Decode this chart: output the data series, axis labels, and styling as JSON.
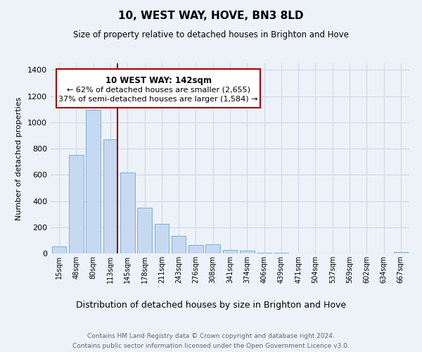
{
  "title": "10, WEST WAY, HOVE, BN3 8LD",
  "subtitle": "Size of property relative to detached houses in Brighton and Hove",
  "xlabel": "Distribution of detached houses by size in Brighton and Hove",
  "ylabel": "Number of detached properties",
  "bar_labels": [
    "15sqm",
    "48sqm",
    "80sqm",
    "113sqm",
    "145sqm",
    "178sqm",
    "211sqm",
    "243sqm",
    "276sqm",
    "308sqm",
    "341sqm",
    "374sqm",
    "406sqm",
    "439sqm",
    "471sqm",
    "504sqm",
    "537sqm",
    "569sqm",
    "602sqm",
    "634sqm",
    "667sqm"
  ],
  "bar_values": [
    55,
    750,
    1095,
    870,
    615,
    350,
    228,
    132,
    65,
    70,
    25,
    20,
    8,
    5,
    2,
    1,
    0,
    0,
    0,
    0,
    10
  ],
  "bar_color": "#c6d9f0",
  "bar_edgecolor": "#7bafd4",
  "vline_color": "#8b0000",
  "ylim": [
    0,
    1450
  ],
  "yticks": [
    0,
    200,
    400,
    600,
    800,
    1000,
    1200,
    1400
  ],
  "annotation_title": "10 WEST WAY: 142sqm",
  "annotation_line1": "← 62% of detached houses are smaller (2,655)",
  "annotation_line2": "37% of semi-detached houses are larger (1,584) →",
  "annotation_box_color": "#aa0000",
  "footer_line1": "Contains HM Land Registry data © Crown copyright and database right 2024.",
  "footer_line2": "Contains public sector information licensed under the Open Government Licence v3.0.",
  "bg_color": "#edf2f9",
  "grid_color": "#d0d8e8",
  "title_fontsize": 11,
  "subtitle_fontsize": 8.5
}
